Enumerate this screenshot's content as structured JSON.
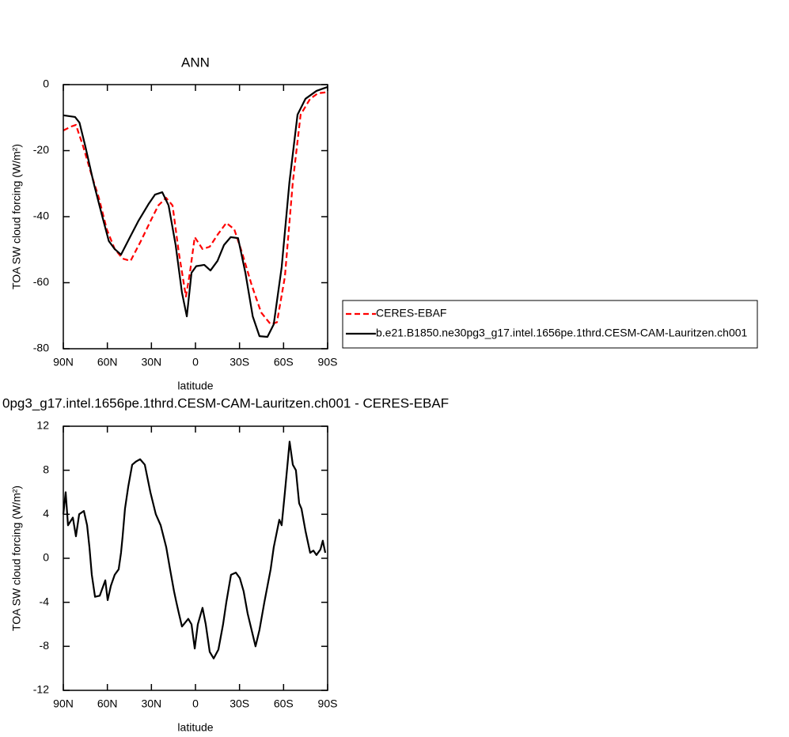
{
  "chart_data": [
    {
      "type": "line",
      "title": "ANN",
      "xlabel": "latitude",
      "ylabel": "TOA SW cloud forcing (W/m²)",
      "xlim": [
        90,
        -90
      ],
      "xticks": [
        {
          "value": 90,
          "label": "90N"
        },
        {
          "value": 60,
          "label": "60N"
        },
        {
          "value": 30,
          "label": "30N"
        },
        0,
        {
          "value": -30,
          "label": "30S"
        },
        {
          "value": -60,
          "label": "60S"
        },
        {
          "value": -90,
          "label": "90S"
        }
      ],
      "ylim": [
        -80,
        0
      ],
      "yticks": [
        0,
        -20,
        -40,
        -60,
        -80
      ],
      "legend": "right",
      "series": [
        {
          "name": "CERES-EBAF",
          "color": "#ff0000",
          "dashed": true,
          "x": [
            90,
            84.6,
            81.4,
            76.5,
            71,
            65.8,
            60.4,
            55,
            49.6,
            44.2,
            37.2,
            30.7,
            25.3,
            20,
            15.6,
            11.3,
            6.5,
            3.8,
            0.5,
            -4.8,
            -9.7,
            -15,
            -21,
            -26.4,
            -31.8,
            -38.2,
            -44.7,
            -51.2,
            -55.5,
            -60.9,
            -66.3,
            -71.6,
            -78.1,
            -83.5,
            -87.8,
            -90
          ],
          "values": [
            -13.9,
            -12.7,
            -12.2,
            -18.7,
            -27,
            -34.3,
            -43.8,
            -49.8,
            -52.7,
            -53.4,
            -47.4,
            -41.4,
            -36.6,
            -34.3,
            -36.6,
            -51,
            -64.2,
            -57,
            -46.2,
            -49.8,
            -49.1,
            -45.5,
            -41.9,
            -43.8,
            -51,
            -60.6,
            -69,
            -72.6,
            -72,
            -58.2,
            -29.5,
            -9.1,
            -4.3,
            -2.6,
            -2.4,
            -1.9
          ]
        },
        {
          "name": "b.e21.B1850.ne30pg3_g17.intel.1656pe.1thrd.CESM-CAM-Lauritzen.ch001",
          "color": "#000000",
          "dashed": false,
          "x": [
            90,
            82,
            79,
            75,
            69.5,
            64,
            59,
            55,
            50.7,
            44,
            39,
            32,
            27.5,
            22.6,
            18.3,
            13.5,
            9.2,
            5.9,
            2.7,
            -0.5,
            -6,
            -10.2,
            -15,
            -19.4,
            -24,
            -29,
            -34,
            -39,
            -43.6,
            -49,
            -53.3,
            -58.7,
            -64,
            -69.5,
            -74.9,
            -82.4,
            -90
          ],
          "values": [
            -9.3,
            -9.8,
            -11.5,
            -18.7,
            -29.5,
            -39,
            -47.4,
            -49.8,
            -51.5,
            -45.7,
            -41.4,
            -36.2,
            -33.3,
            -32.6,
            -36.6,
            -48.6,
            -63,
            -70.2,
            -57,
            -55,
            -54.6,
            -56.3,
            -53.4,
            -48.6,
            -46.2,
            -46.5,
            -57,
            -70.2,
            -76.2,
            -76.4,
            -72.6,
            -55.3,
            -29.5,
            -9.1,
            -4.3,
            -1.9,
            -0.7
          ]
        }
      ]
    },
    {
      "type": "line",
      "title": "0pg3_g17.intel.1656pe.1thrd.CESM-CAM-Lauritzen.ch001 - CERES-EBAF",
      "xlabel": "latitude",
      "ylabel": "TOA SW cloud forcing (W/m²)",
      "xlim": [
        90,
        -90
      ],
      "xticks": [
        {
          "value": 90,
          "label": "90N"
        },
        {
          "value": 60,
          "label": "60N"
        },
        {
          "value": 30,
          "label": "30N"
        },
        0,
        {
          "value": -30,
          "label": "30S"
        },
        {
          "value": -60,
          "label": "60S"
        },
        {
          "value": -90,
          "label": "90S"
        }
      ],
      "ylim": [
        -12,
        12
      ],
      "yticks": [
        12,
        8,
        4,
        0,
        -4,
        -8,
        -12
      ],
      "series": [
        {
          "color": "#000000",
          "dashed": false,
          "x": [
            90,
            88.4,
            86.8,
            83.5,
            81.4,
            79.2,
            76,
            73.8,
            72.2,
            70.6,
            68.4,
            65.2,
            61.4,
            59.8,
            57.6,
            55,
            52.3,
            50.7,
            49.6,
            48,
            45.8,
            43.1,
            40.4,
            37.7,
            34.5,
            30.7,
            27,
            23.7,
            19.9,
            17.3,
            14.6,
            13,
            11.3,
            9.2,
            4.9,
            2.7,
            0.5,
            -1.6,
            -4.8,
            -7,
            -9.7,
            -12.4,
            -15.6,
            -18.8,
            -21,
            -24.2,
            -27.5,
            -30.2,
            -32.8,
            -35.5,
            -38.2,
            -40.9,
            -43.6,
            -46.9,
            -51.2,
            -53.3,
            -57.1,
            -58.7,
            -60.9,
            -63,
            -64.1,
            -66.3,
            -68.4,
            -70.6,
            -72.2,
            -74.9,
            -78.1,
            -80.3,
            -82.4,
            -85.1,
            -86.7,
            -88.4
          ],
          "values": [
            4,
            6,
            3,
            3.7,
            2,
            4,
            4.3,
            3,
            1,
            -1.5,
            -3.5,
            -3.4,
            -2,
            -3.8,
            -2.5,
            -1.5,
            -1,
            0.5,
            2,
            4.5,
            6.5,
            8.5,
            8.8,
            9,
            8.5,
            6,
            4,
            3,
            1,
            -1,
            -3,
            -4,
            -5,
            -6.2,
            -5.5,
            -6,
            -8.2,
            -6,
            -4.5,
            -6,
            -8.5,
            -9.1,
            -8.3,
            -6,
            -4,
            -1.5,
            -1.3,
            -1.8,
            -3,
            -5,
            -6.5,
            -8,
            -6.5,
            -4,
            -1,
            1,
            3.5,
            3,
            6,
            9,
            10.6,
            8.5,
            8,
            5,
            4.5,
            2.5,
            0.5,
            0.7,
            0.3,
            0.8,
            1.6,
            0.5
          ]
        }
      ]
    }
  ]
}
